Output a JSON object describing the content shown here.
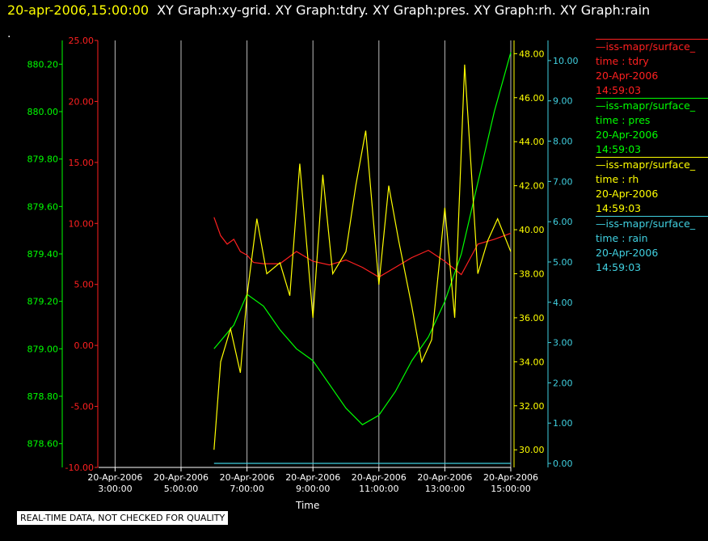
{
  "header": {
    "datetime": "20-apr-2006,15:00:00",
    "graphs": "XY Graph:xy-grid.  XY Graph:tdry.  XY Graph:pres.  XY Graph:rh.  XY Graph:rain",
    "dot": "."
  },
  "notice": "REAL-TIME DATA, NOT CHECKED FOR QUALITY",
  "legend": [
    {
      "source": "—iss-mapr/surface_",
      "variable": "time : tdry",
      "date": "20-Apr-2006",
      "time": "14:59:03",
      "color": "#ff2020"
    },
    {
      "source": "—iss-mapr/surface_",
      "variable": "time : pres",
      "date": "20-Apr-2006",
      "time": "14:59:03",
      "color": "#00ff00"
    },
    {
      "source": "—iss-mapr/surface_",
      "variable": "time : rh",
      "date": "20-Apr-2006",
      "time": "14:59:03",
      "color": "#ffff00"
    },
    {
      "source": "—iss-mapr/surface_",
      "variable": "time : rain",
      "date": "20-Apr-2006",
      "time": "14:59:03",
      "color": "#40d0e0"
    }
  ],
  "chart_data": {
    "type": "line",
    "xlabel": "Time",
    "x_range_hours": [
      2.5,
      15.0
    ],
    "x_ticks": [
      {
        "hour": 3,
        "date": "20-Apr-2006",
        "time": "3:00:00"
      },
      {
        "hour": 5,
        "date": "20-Apr-2006",
        "time": "5:00:00"
      },
      {
        "hour": 7,
        "date": "20-Apr-2006",
        "time": "7:00:00"
      },
      {
        "hour": 9,
        "date": "20-Apr-2006",
        "time": "9:00:00"
      },
      {
        "hour": 11,
        "date": "20-Apr-2006",
        "time": "11:00:00"
      },
      {
        "hour": 13,
        "date": "20-Apr-2006",
        "time": "13:00:00"
      },
      {
        "hour": 15,
        "date": "20-Apr-2006",
        "time": "15:00:00"
      }
    ],
    "grid_vertical": true,
    "axes": {
      "tdry": {
        "range": [
          -10,
          25
        ],
        "ticks": [
          "-10.00",
          "-5.00",
          "0.00",
          "5.00",
          "10.00",
          "15.00",
          "20.00",
          "25.00"
        ],
        "color": "#ff2020"
      },
      "pres": {
        "range": [
          878.5,
          880.3
        ],
        "ticks": [
          "878.60",
          "878.80",
          "879.00",
          "879.20",
          "879.40",
          "879.60",
          "879.80",
          "880.00",
          "880.20"
        ],
        "color": "#00ff00"
      },
      "rh": {
        "range": [
          29.2,
          48.6
        ],
        "ticks": [
          "30.00",
          "32.00",
          "34.00",
          "36.00",
          "38.00",
          "40.00",
          "42.00",
          "44.00",
          "46.00",
          "48.00"
        ],
        "color": "#ffff00"
      },
      "rain": {
        "range": [
          -0.1,
          10.5
        ],
        "ticks": [
          "0.00",
          "1.00",
          "2.00",
          "3.00",
          "4.00",
          "5.00",
          "6.00",
          "7.00",
          "8.00",
          "9.00",
          "10.00"
        ],
        "color": "#40d0e0"
      }
    },
    "series": [
      {
        "name": "tdry",
        "axis": "tdry",
        "color": "#ff2020",
        "x": [
          6.0,
          6.2,
          6.4,
          6.6,
          6.8,
          7.0,
          7.2,
          7.5,
          8.0,
          8.5,
          9.0,
          9.5,
          10.0,
          10.5,
          11.0,
          11.5,
          12.0,
          12.5,
          13.0,
          13.5,
          14.0,
          14.5,
          15.0
        ],
        "y": [
          10.5,
          9.0,
          8.3,
          8.7,
          7.7,
          7.4,
          6.8,
          6.7,
          6.7,
          7.7,
          6.9,
          6.6,
          7.0,
          6.4,
          5.6,
          6.4,
          7.2,
          7.8,
          6.9,
          5.8,
          8.3,
          8.7,
          9.2
        ]
      },
      {
        "name": "pres",
        "axis": "pres",
        "color": "#00ff00",
        "x": [
          6.0,
          6.3,
          6.6,
          7.0,
          7.5,
          8.0,
          8.5,
          9.0,
          9.5,
          10.0,
          10.5,
          11.0,
          11.5,
          12.0,
          12.5,
          13.0,
          13.5,
          14.0,
          14.5,
          15.0
        ],
        "y": [
          879.0,
          879.05,
          879.1,
          879.23,
          879.18,
          879.08,
          879.0,
          878.95,
          878.85,
          878.75,
          878.68,
          878.72,
          878.82,
          878.95,
          879.05,
          879.2,
          879.4,
          879.7,
          880.0,
          880.25
        ]
      },
      {
        "name": "rh",
        "axis": "rh",
        "color": "#ffff00",
        "x": [
          6.0,
          6.2,
          6.5,
          6.8,
          7.0,
          7.3,
          7.6,
          8.0,
          8.3,
          8.6,
          9.0,
          9.3,
          9.6,
          10.0,
          10.3,
          10.6,
          11.0,
          11.3,
          11.6,
          12.0,
          12.3,
          12.6,
          13.0,
          13.3,
          13.6,
          14.0,
          14.3,
          14.6,
          15.0
        ],
        "y": [
          30.0,
          34.0,
          35.5,
          33.5,
          37.0,
          40.5,
          38.0,
          38.5,
          37.0,
          43.0,
          36.0,
          42.5,
          38.0,
          39.0,
          42.0,
          44.5,
          37.5,
          42.0,
          39.5,
          36.5,
          34.0,
          35.0,
          41.0,
          36.0,
          47.5,
          38.0,
          39.5,
          40.5,
          39.0
        ]
      },
      {
        "name": "rain",
        "axis": "rain",
        "color": "#40d0e0",
        "x": [
          6.0,
          15.0
        ],
        "y": [
          0.0,
          0.0
        ]
      }
    ]
  }
}
